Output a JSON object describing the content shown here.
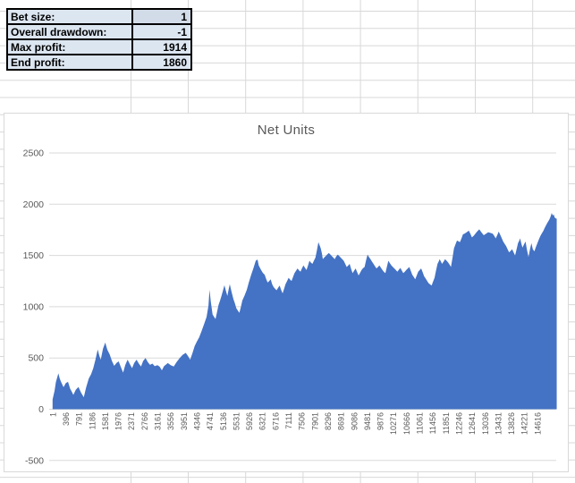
{
  "stats": {
    "rows": [
      {
        "label": "Bet size:",
        "value": "1"
      },
      {
        "label": "Overall drawdown:",
        "value": "-1"
      },
      {
        "label": "Max profit:",
        "value": "1914"
      },
      {
        "label": "End profit:",
        "value": "1860"
      }
    ],
    "label_cell_fill": "#DCE6F1",
    "value_cell_fill": "#DCE6F1",
    "first_value_cell_fill": "#D2DCE8"
  },
  "chart": {
    "title": "Net Units"
  },
  "chart_data": {
    "type": "area",
    "title": "Net Units",
    "series_name": "Net Units",
    "area_color": "#4472C4",
    "gridline_color": "#D9D9D9",
    "axis_text_color": "#595959",
    "title_color": "#595959",
    "grid": true,
    "legend": "none",
    "ylim": [
      -500,
      2500
    ],
    "y_ticks": [
      "2500",
      "2000",
      "1500",
      "1000",
      "500",
      "0",
      "-500"
    ],
    "x_tick_labels": [
      "1",
      "396",
      "791",
      "1186",
      "1581",
      "1976",
      "2371",
      "2766",
      "3161",
      "3556",
      "3951",
      "4346",
      "4741",
      "5136",
      "5531",
      "5926",
      "6321",
      "6716",
      "7111",
      "7506",
      "7901",
      "8296",
      "8691",
      "9086",
      "9481",
      "9876",
      "10271",
      "10666",
      "11061",
      "11456",
      "11851",
      "12246",
      "12641",
      "13036",
      "13431",
      "13826",
      "14221",
      "14616"
    ],
    "x_label_interval": 395,
    "n_points": 15200,
    "points": [
      [
        0,
        95
      ],
      [
        60,
        180
      ],
      [
        100,
        265
      ],
      [
        175,
        350
      ],
      [
        215,
        300
      ],
      [
        250,
        270
      ],
      [
        330,
        215
      ],
      [
        400,
        255
      ],
      [
        465,
        267
      ],
      [
        530,
        200
      ],
      [
        580,
        170
      ],
      [
        626,
        140
      ],
      [
        700,
        190
      ],
      [
        780,
        217
      ],
      [
        860,
        160
      ],
      [
        941,
        117
      ],
      [
        1010,
        210
      ],
      [
        1092,
        300
      ],
      [
        1160,
        340
      ],
      [
        1227,
        400
      ],
      [
        1290,
        480
      ],
      [
        1361,
        583
      ],
      [
        1410,
        520
      ],
      [
        1453,
        483
      ],
      [
        1520,
        590
      ],
      [
        1588,
        650
      ],
      [
        1650,
        580
      ],
      [
        1723,
        533
      ],
      [
        1790,
        470
      ],
      [
        1858,
        423
      ],
      [
        1925,
        450
      ],
      [
        1992,
        467
      ],
      [
        2060,
        410
      ],
      [
        2127,
        357
      ],
      [
        2190,
        430
      ],
      [
        2262,
        483
      ],
      [
        2330,
        440
      ],
      [
        2397,
        400
      ],
      [
        2460,
        450
      ],
      [
        2532,
        483
      ],
      [
        2600,
        445
      ],
      [
        2667,
        417
      ],
      [
        2730,
        470
      ],
      [
        2802,
        500
      ],
      [
        2870,
        460
      ],
      [
        2937,
        433
      ],
      [
        3010,
        445
      ],
      [
        3080,
        420
      ],
      [
        3161,
        430
      ],
      [
        3230,
        415
      ],
      [
        3295,
        380
      ],
      [
        3360,
        420
      ],
      [
        3475,
        450
      ],
      [
        3560,
        430
      ],
      [
        3653,
        417
      ],
      [
        3740,
        460
      ],
      [
        3834,
        500
      ],
      [
        3920,
        530
      ],
      [
        4014,
        550
      ],
      [
        4080,
        520
      ],
      [
        4149,
        483
      ],
      [
        4220,
        550
      ],
      [
        4284,
        616
      ],
      [
        4350,
        660
      ],
      [
        4419,
        700
      ],
      [
        4490,
        760
      ],
      [
        4554,
        817
      ],
      [
        4643,
        900
      ],
      [
        4700,
        1010
      ],
      [
        4732,
        1165
      ],
      [
        4770,
        1050
      ],
      [
        4824,
        925
      ],
      [
        4870,
        900
      ],
      [
        4913,
        880
      ],
      [
        4960,
        950
      ],
      [
        5002,
        1015
      ],
      [
        5050,
        1060
      ],
      [
        5092,
        1105
      ],
      [
        5140,
        1160
      ],
      [
        5181,
        1210
      ],
      [
        5230,
        1150
      ],
      [
        5270,
        1105
      ],
      [
        5310,
        1170
      ],
      [
        5343,
        1219
      ],
      [
        5400,
        1140
      ],
      [
        5451,
        1075
      ],
      [
        5500,
        1030
      ],
      [
        5540,
        985
      ],
      [
        5590,
        960
      ],
      [
        5632,
        940
      ],
      [
        5680,
        1000
      ],
      [
        5721,
        1060
      ],
      [
        5790,
        1110
      ],
      [
        5856,
        1165
      ],
      [
        5920,
        1240
      ],
      [
        5991,
        1314
      ],
      [
        6060,
        1380
      ],
      [
        6126,
        1449
      ],
      [
        6180,
        1460
      ],
      [
        6215,
        1403
      ],
      [
        6287,
        1358
      ],
      [
        6340,
        1330
      ],
      [
        6395,
        1312
      ],
      [
        6440,
        1270
      ],
      [
        6485,
        1236
      ],
      [
        6530,
        1250
      ],
      [
        6576,
        1267
      ],
      [
        6620,
        1220
      ],
      [
        6665,
        1191
      ],
      [
        6710,
        1175
      ],
      [
        6754,
        1161
      ],
      [
        6800,
        1185
      ],
      [
        6846,
        1206
      ],
      [
        6890,
        1165
      ],
      [
        6935,
        1130
      ],
      [
        6980,
        1175
      ],
      [
        7024,
        1221
      ],
      [
        7070,
        1250
      ],
      [
        7116,
        1282
      ],
      [
        7160,
        1265
      ],
      [
        7205,
        1251
      ],
      [
        7250,
        1290
      ],
      [
        7294,
        1327
      ],
      [
        7340,
        1350
      ],
      [
        7385,
        1373
      ],
      [
        7430,
        1355
      ],
      [
        7475,
        1342
      ],
      [
        7520,
        1375
      ],
      [
        7564,
        1403
      ],
      [
        7610,
        1380
      ],
      [
        7656,
        1358
      ],
      [
        7700,
        1400
      ],
      [
        7745,
        1448
      ],
      [
        7790,
        1430
      ],
      [
        7834,
        1418
      ],
      [
        7880,
        1450
      ],
      [
        7926,
        1479
      ],
      [
        7970,
        1550
      ],
      [
        8015,
        1630
      ],
      [
        8050,
        1600
      ],
      [
        8085,
        1570
      ],
      [
        8120,
        1520
      ],
      [
        8148,
        1464
      ],
      [
        8190,
        1480
      ],
      [
        8237,
        1494
      ],
      [
        8280,
        1510
      ],
      [
        8329,
        1524
      ],
      [
        8375,
        1510
      ],
      [
        8418,
        1494
      ],
      [
        8460,
        1480
      ],
      [
        8507,
        1464
      ],
      [
        8550,
        1490
      ],
      [
        8598,
        1509
      ],
      [
        8640,
        1495
      ],
      [
        8687,
        1479
      ],
      [
        8730,
        1465
      ],
      [
        8777,
        1448
      ],
      [
        8820,
        1420
      ],
      [
        8868,
        1388
      ],
      [
        8910,
        1400
      ],
      [
        8957,
        1418
      ],
      [
        9000,
        1370
      ],
      [
        9046,
        1327
      ],
      [
        9090,
        1350
      ],
      [
        9137,
        1373
      ],
      [
        9180,
        1340
      ],
      [
        9226,
        1305
      ],
      [
        9270,
        1330
      ],
      [
        9316,
        1358
      ],
      [
        9360,
        1375
      ],
      [
        9407,
        1388
      ],
      [
        9450,
        1450
      ],
      [
        9496,
        1509
      ],
      [
        9540,
        1485
      ],
      [
        9585,
        1464
      ],
      [
        9630,
        1440
      ],
      [
        9676,
        1418
      ],
      [
        9720,
        1395
      ],
      [
        9766,
        1373
      ],
      [
        9810,
        1388
      ],
      [
        9855,
        1403
      ],
      [
        9900,
        1380
      ],
      [
        9946,
        1358
      ],
      [
        9990,
        1340
      ],
      [
        10035,
        1327
      ],
      [
        10080,
        1390
      ],
      [
        10124,
        1448
      ],
      [
        10170,
        1425
      ],
      [
        10216,
        1403
      ],
      [
        10260,
        1388
      ],
      [
        10305,
        1373
      ],
      [
        10350,
        1358
      ],
      [
        10394,
        1342
      ],
      [
        10440,
        1360
      ],
      [
        10485,
        1379
      ],
      [
        10530,
        1353
      ],
      [
        10574,
        1327
      ],
      [
        10620,
        1342
      ],
      [
        10663,
        1358
      ],
      [
        10710,
        1373
      ],
      [
        10755,
        1388
      ],
      [
        10800,
        1350
      ],
      [
        10844,
        1312
      ],
      [
        10890,
        1290
      ],
      [
        10933,
        1267
      ],
      [
        10980,
        1305
      ],
      [
        11024,
        1342
      ],
      [
        11070,
        1358
      ],
      [
        11113,
        1373
      ],
      [
        11160,
        1335
      ],
      [
        11202,
        1297
      ],
      [
        11250,
        1274
      ],
      [
        11294,
        1251
      ],
      [
        11340,
        1228
      ],
      [
        11429,
        1206
      ],
      [
        11470,
        1244
      ],
      [
        11517,
        1282
      ],
      [
        11560,
        1350
      ],
      [
        11606,
        1418
      ],
      [
        11640,
        1440
      ],
      [
        11671,
        1464
      ],
      [
        11710,
        1440
      ],
      [
        11741,
        1418
      ],
      [
        11790,
        1440
      ],
      [
        11833,
        1464
      ],
      [
        11880,
        1448
      ],
      [
        11922,
        1433
      ],
      [
        11970,
        1410
      ],
      [
        12011,
        1388
      ],
      [
        12060,
        1480
      ],
      [
        12103,
        1570
      ],
      [
        12150,
        1610
      ],
      [
        12192,
        1645
      ],
      [
        12240,
        1638
      ],
      [
        12281,
        1630
      ],
      [
        12330,
        1668
      ],
      [
        12373,
        1706
      ],
      [
        12420,
        1713
      ],
      [
        12462,
        1721
      ],
      [
        12510,
        1732
      ],
      [
        12551,
        1742
      ],
      [
        12600,
        1709
      ],
      [
        12643,
        1676
      ],
      [
        12690,
        1690
      ],
      [
        12730,
        1705
      ],
      [
        12790,
        1730
      ],
      [
        12865,
        1755
      ],
      [
        12930,
        1725
      ],
      [
        13000,
        1697
      ],
      [
        13070,
        1712
      ],
      [
        13135,
        1727
      ],
      [
        13200,
        1720
      ],
      [
        13270,
        1712
      ],
      [
        13320,
        1690
      ],
      [
        13360,
        1667
      ],
      [
        13410,
        1700
      ],
      [
        13451,
        1733
      ],
      [
        13520,
        1685
      ],
      [
        13586,
        1636
      ],
      [
        13630,
        1613
      ],
      [
        13675,
        1591
      ],
      [
        13720,
        1560
      ],
      [
        13764,
        1530
      ],
      [
        13810,
        1545
      ],
      [
        13856,
        1561
      ],
      [
        13900,
        1530
      ],
      [
        13945,
        1500
      ],
      [
        13990,
        1560
      ],
      [
        14034,
        1621
      ],
      [
        14070,
        1644
      ],
      [
        14098,
        1667
      ],
      [
        14130,
        1620
      ],
      [
        14168,
        1576
      ],
      [
        14210,
        1606
      ],
      [
        14260,
        1636
      ],
      [
        14300,
        1560
      ],
      [
        14349,
        1485
      ],
      [
        14400,
        1570
      ],
      [
        14438,
        1620
      ],
      [
        14480,
        1560
      ],
      [
        14528,
        1540
      ],
      [
        14570,
        1580
      ],
      [
        14618,
        1620
      ],
      [
        14660,
        1655
      ],
      [
        14707,
        1690
      ],
      [
        14750,
        1715
      ],
      [
        14797,
        1740
      ],
      [
        14840,
        1770
      ],
      [
        14887,
        1800
      ],
      [
        14930,
        1825
      ],
      [
        14977,
        1850
      ],
      [
        15010,
        1875
      ],
      [
        15049,
        1914
      ],
      [
        15080,
        1890
      ],
      [
        15110,
        1900
      ],
      [
        15140,
        1870
      ],
      [
        15180,
        1860
      ]
    ]
  }
}
